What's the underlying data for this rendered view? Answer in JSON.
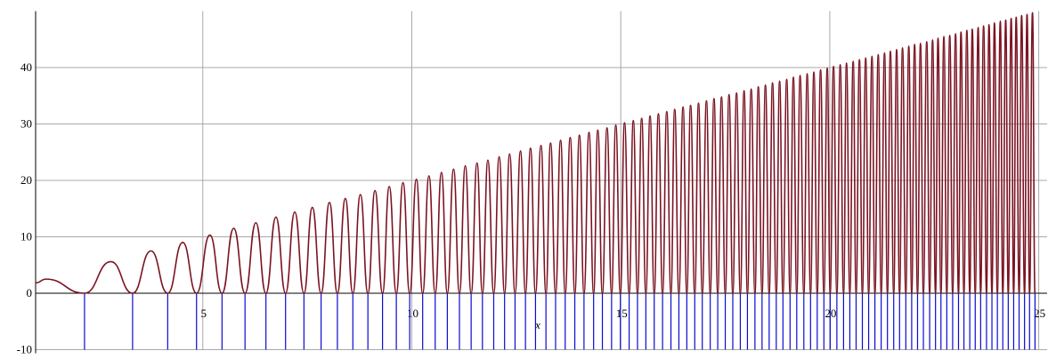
{
  "chart_data": {
    "type": "line",
    "xlabel": "x",
    "xlim": [
      1,
      25.2
    ],
    "ylim": [
      -10,
      50
    ],
    "xticks": [
      5,
      10,
      15,
      20,
      25
    ],
    "yticks": [
      -10,
      0,
      10,
      20,
      30,
      40
    ],
    "grid": true,
    "color": "#7b1422",
    "stem_color": "#0a0ad2",
    "x": [
      1,
      1.25,
      2.17,
      2.8,
      3.32,
      3.76,
      4.16,
      4.52,
      4.85,
      5.17,
      5.46,
      5.74,
      6.01,
      6.27,
      6.51,
      6.75,
      6.98,
      7.2,
      7.42,
      7.62,
      7.83,
      8.03,
      8.22,
      8.41,
      8.59,
      8.77,
      8.95,
      9.12,
      9.3,
      9.46,
      9.63,
      9.79,
      9.95,
      10.11,
      10.26,
      10.41,
      10.56,
      10.71,
      10.85,
      11,
      11.14,
      11.28,
      11.42,
      11.56,
      11.69,
      11.82,
      11.96,
      12.09,
      12.22,
      12.34,
      12.47,
      12.6,
      12.72,
      12.84,
      12.96,
      13.09,
      13.21,
      13.32,
      13.44,
      13.56,
      13.67,
      13.79,
      13.9,
      14.01,
      14.12,
      14.24,
      14.35,
      14.45,
      14.56,
      14.67,
      14.78,
      14.88,
      14.99,
      15.09,
      15.2,
      15.3,
      15.4,
      15.5,
      15.6,
      15.7,
      15.8,
      15.9,
      16,
      16.1,
      16.2,
      16.29,
      16.39,
      16.49,
      16.58,
      16.67,
      16.77,
      16.86,
      16.95,
      17.05,
      17.14,
      17.23,
      17.32,
      17.41,
      17.5,
      17.59,
      17.68,
      17.77,
      17.86,
      17.95,
      18.03,
      18.12,
      18.21,
      18.29,
      18.38,
      18.46,
      18.55,
      18.63,
      18.72,
      18.8,
      18.88,
      18.97,
      19.05,
      19.13,
      19.21,
      19.29,
      19.38,
      19.46,
      19.54,
      19.62,
      19.7,
      19.78,
      19.86,
      19.94,
      20.01,
      20.09,
      20.17,
      20.25,
      20.33,
      20.4,
      20.48,
      20.56,
      20.63,
      20.71,
      20.78,
      20.86,
      20.93,
      21.01,
      21.08,
      21.16,
      21.23,
      21.31,
      21.38,
      21.45,
      21.53,
      21.6,
      21.67,
      21.74,
      21.82,
      21.89,
      21.96,
      22.03,
      22.1,
      22.17,
      22.24,
      22.32,
      22.39,
      22.46,
      22.53,
      22.59,
      22.66,
      22.73,
      22.8,
      22.87,
      22.94,
      23.01,
      23.08,
      23.14,
      23.21,
      23.28,
      23.35,
      23.41,
      23.48,
      23.55,
      23.61,
      23.68,
      23.75,
      23.81,
      23.88,
      23.94,
      24.01,
      24.08,
      24.14,
      24.21,
      24.27,
      24.34,
      24.4,
      24.46,
      24.53,
      24.59,
      24.66,
      24.72,
      24.78,
      24.85,
      24.91
    ],
    "values": [
      1.84,
      2.5,
      0,
      5.6,
      0,
      7.5,
      0,
      9.0,
      0,
      10.3,
      0,
      11.5,
      0,
      12.5,
      0,
      13.5,
      0,
      14.4,
      0,
      15.2,
      0,
      16.1,
      0,
      16.8,
      0,
      17.5,
      0,
      18.2,
      0,
      18.9,
      0,
      19.6,
      0,
      20.2,
      0,
      20.8,
      0,
      21.4,
      0,
      22.0,
      0,
      22.6,
      0,
      23.1,
      0,
      23.6,
      0,
      24.2,
      0,
      24.7,
      0,
      25.2,
      0,
      25.7,
      0,
      26.2,
      0,
      26.6,
      0,
      27.1,
      0,
      27.6,
      0,
      28.0,
      0,
      28.5,
      0,
      28.9,
      0,
      29.3,
      0,
      29.8,
      0,
      30.2,
      0,
      30.6,
      0,
      31.0,
      0,
      31.4,
      0,
      31.8,
      0,
      32.2,
      0,
      32.6,
      0,
      33.0,
      0,
      33.3,
      0,
      33.7,
      0,
      34.1,
      0,
      34.5,
      0,
      34.8,
      0,
      35.2,
      0,
      35.5,
      0,
      35.9,
      0,
      36.2,
      0,
      36.6,
      0,
      36.9,
      0,
      37.3,
      0,
      37.6,
      0,
      37.9,
      0,
      38.3,
      0,
      38.6,
      0,
      38.9,
      0,
      39.2,
      0,
      39.6,
      0,
      39.9,
      0,
      40.2,
      0,
      40.5,
      0,
      40.8,
      0,
      41.1,
      0,
      41.4,
      0,
      41.7,
      0,
      42.0,
      0,
      42.3,
      0,
      42.6,
      0,
      42.9,
      0,
      43.2,
      0,
      43.5,
      0,
      43.8,
      0,
      44.1,
      0,
      44.3,
      0,
      44.6,
      0,
      44.9,
      0,
      45.2,
      0,
      45.5,
      0,
      45.7,
      0,
      46.0,
      0,
      46.3,
      0,
      46.6,
      0,
      46.8,
      0,
      47.1,
      0,
      47.4,
      0,
      47.6,
      0,
      47.9,
      0,
      48.2,
      0,
      48.4,
      0,
      48.7,
      0,
      48.9,
      0,
      49.2,
      0,
      49.4,
      0,
      49.7,
      0
    ]
  }
}
